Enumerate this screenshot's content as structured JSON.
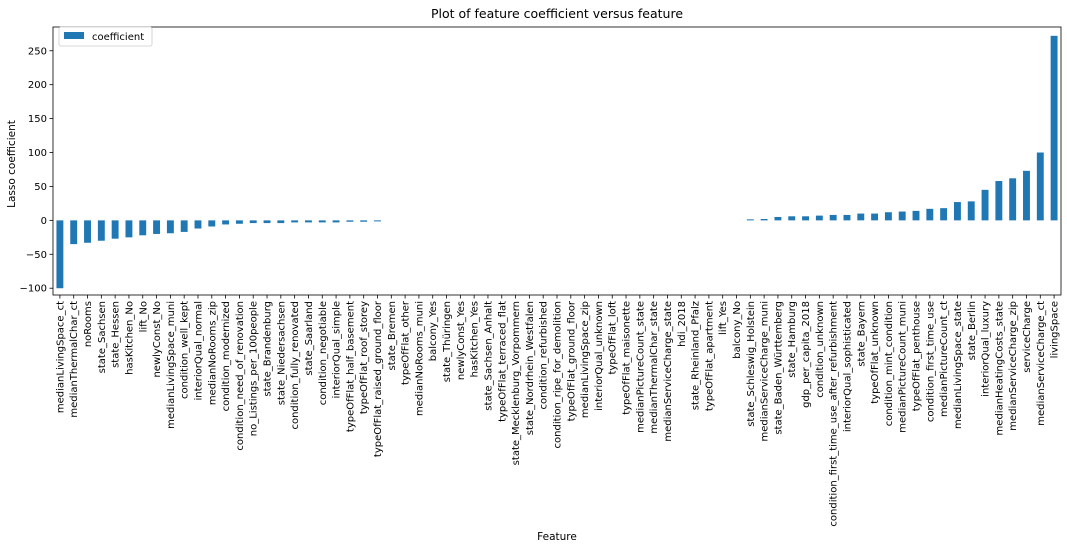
{
  "chart_data": {
    "type": "bar",
    "title": "Plot of feature coefficient versus feature",
    "xlabel": "Feature",
    "ylabel": "Lasso coefficient",
    "ylim": [
      -110,
      285
    ],
    "yticks": [
      -100,
      -50,
      0,
      50,
      100,
      150,
      200,
      250
    ],
    "grid": false,
    "legend": {
      "placement": "top-left",
      "entries": [
        "coefficient"
      ]
    },
    "bar_color": "#1f77b4",
    "categories": [
      "medianLivingSpace_ct",
      "medianThermalChar_ct",
      "noRooms",
      "state_Sachsen",
      "state_Hessen",
      "hasKitchen_No",
      "lift_No",
      "newlyConst_No",
      "medianLivingSpace_muni",
      "condition_well_kept",
      "interiorQual_normal",
      "medianNoRooms_zip",
      "condition_modernized",
      "condition_need_of_renovation",
      "no_Listings_per_100people",
      "state_Brandenburg",
      "state_Niedersachsen",
      "condition_fully_renovated",
      "state_Saarland",
      "condition_negotiable",
      "interiorQual_simple",
      "typeOfFlat_half_basement",
      "typeOfFlat_roof_storey",
      "typeOfFlat_raised_ground_floor",
      "state_Bremen",
      "typeOfFlat_other",
      "medianNoRooms_muni",
      "balcony_Yes",
      "state_Thüringen",
      "newlyConst_Yes",
      "hasKitchen_Yes",
      "state_Sachsen_Anhalt",
      "typeOfFlat_terraced_flat",
      "state_Mecklenburg_Vorpommern",
      "state_Nordrhein_Westfalen",
      "condition_refurbished",
      "condition_ripe_for_demolition",
      "typeOfFlat_ground_floor",
      "medianLivingSpace_zip",
      "interiorQual_unknown",
      "typeOfFlat_loft",
      "typeOfFlat_maisonette",
      "medianPictureCount_state",
      "medianThermalChar_state",
      "medianServiceCharge_state",
      "hdi_2018",
      "state_Rheinland_Pfalz",
      "typeOfFlat_apartment",
      "lift_Yes",
      "balcony_No",
      "state_Schleswig_Holstein",
      "medianServiceCharge_muni",
      "state_Baden_Württemberg",
      "state_Hamburg",
      "gdp_per_capita_2018",
      "condition_unknown",
      "condition_first_time_use_after_refurbishment",
      "interiorQual_sophisticated",
      "state_Bayern",
      "typeOfFlat_unknown",
      "condition_mint_condition",
      "medianPictureCount_muni",
      "typeOfFlat_penthouse",
      "condition_first_time_use",
      "medianPictureCount_ct",
      "medianLivingSpace_state",
      "state_Berlin",
      "interiorQual_luxury",
      "medianHeatingCosts_state",
      "medianServiceCharge_zip",
      "serviceCharge",
      "medianServiceCharge_ct",
      "livingSpace"
    ],
    "values": [
      -100,
      -35,
      -33,
      -30,
      -27,
      -25,
      -22,
      -20,
      -19,
      -17,
      -12,
      -9,
      -6,
      -5,
      -4,
      -4,
      -4,
      -3,
      -3,
      -3,
      -3,
      -2,
      -2,
      -1.5,
      0,
      0,
      0,
      0,
      0,
      0,
      0,
      0,
      0,
      0,
      0,
      0,
      0,
      0,
      0,
      0,
      0,
      0,
      0,
      0,
      0,
      0,
      0,
      0,
      0,
      0,
      1.5,
      2,
      5,
      6,
      6,
      7,
      8,
      8,
      10,
      10,
      12,
      13,
      14,
      17,
      18,
      27,
      28,
      45,
      58,
      62,
      73,
      100,
      272
    ]
  }
}
